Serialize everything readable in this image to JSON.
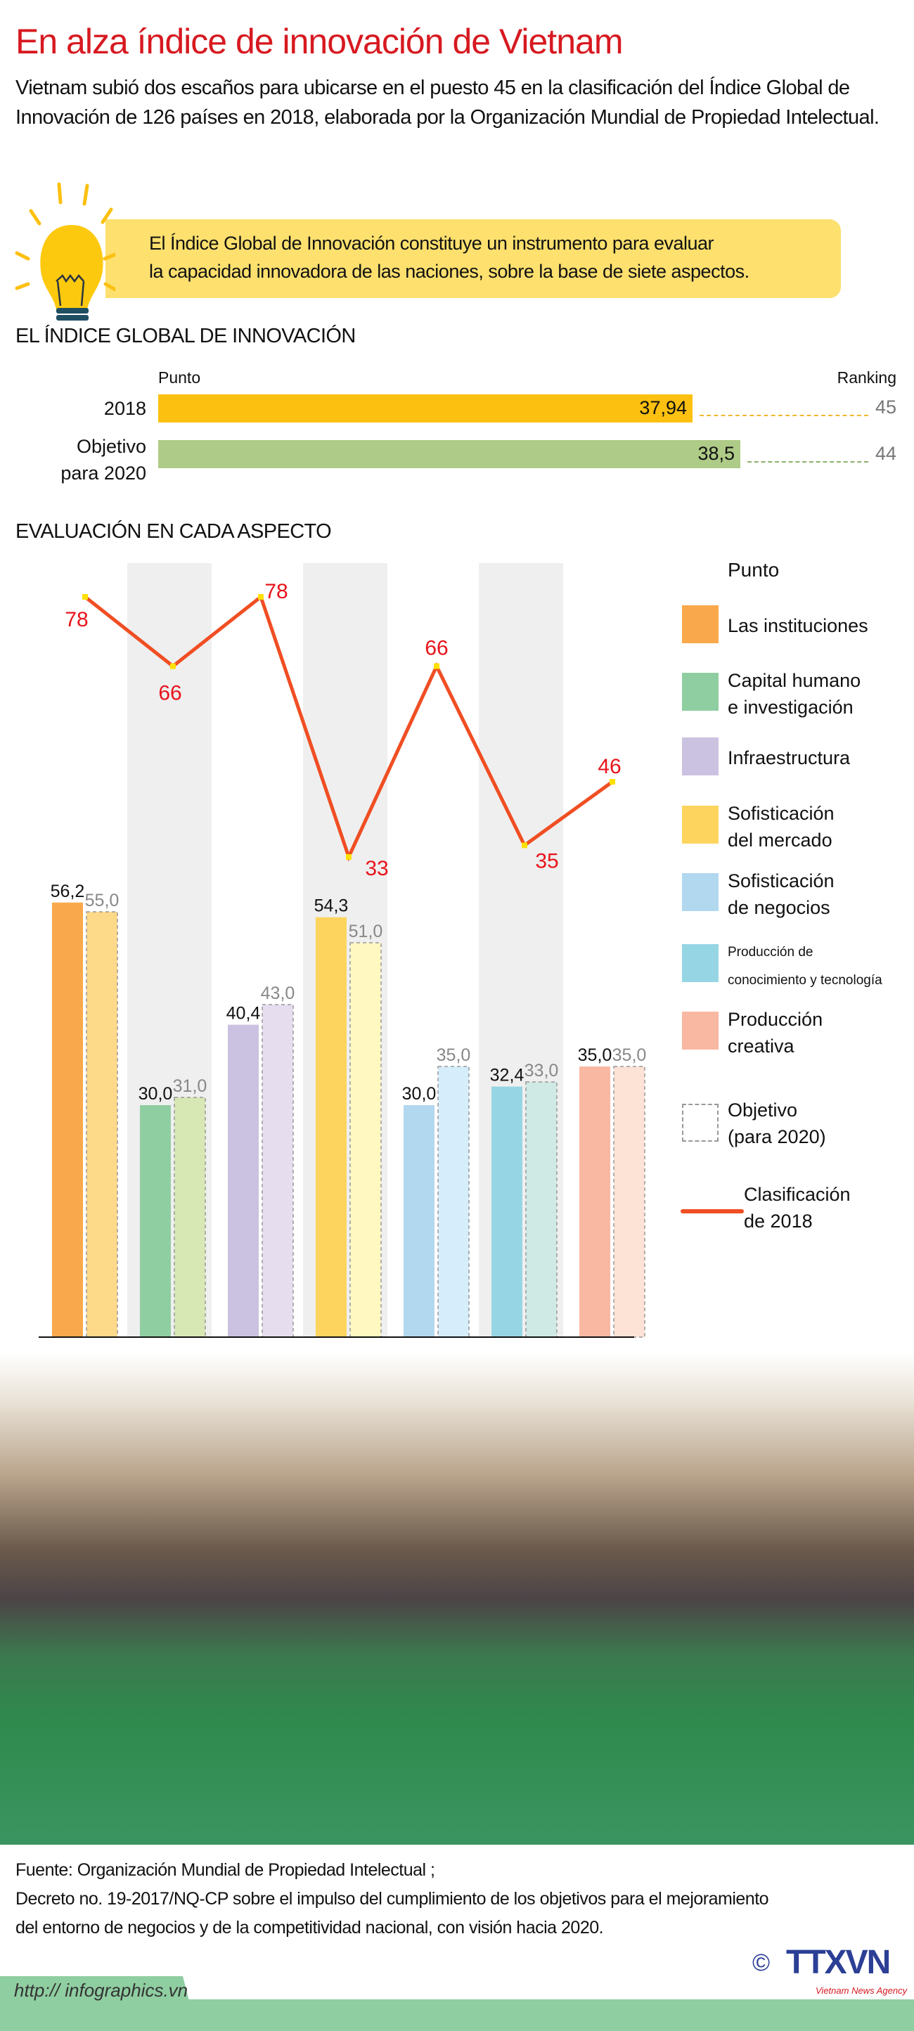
{
  "title": "En alza índice de innovación de Vietnam",
  "intro": "Vietnam subió dos escaños para ubicarse en el puesto 45 en la clasificación del Índice Global de Innovación de 126 países en 2018, elaborada por la Organización Mundial de Propiedad Intelectual.",
  "note": {
    "line1": "El Índice Global de Innovación constituye un instrumento para evaluar",
    "line2": "la capacidad innovadora de las naciones,  sobre la base de siete aspectos.",
    "icon": "lightbulb-icon"
  },
  "colors": {
    "title": "#d71920",
    "line": "#f04e23",
    "rank_label": "#e8141b"
  },
  "chart_data": [
    {
      "type": "bar",
      "title": "EL ÍNDICE GLOBAL DE INNOVACIÓN",
      "orientation": "horizontal",
      "value_header": "Punto",
      "rank_header": "Ranking",
      "rows": [
        {
          "label": "2018",
          "value": 37.94,
          "value_label": "37,94",
          "ranking": 45,
          "color": "#fcc010"
        },
        {
          "label": "Objetivo",
          "label2": "para 2020",
          "value": 38.5,
          "value_label": "38,5",
          "ranking": 44,
          "color": "#aecb87"
        }
      ]
    },
    {
      "type": "bar",
      "title": "EVALUACIÓN EN CADA ASPECTO",
      "legend_title": "Punto",
      "legend_placement": "right",
      "categories": [
        "Las instituciones",
        "Capital humano e investigación",
        "Infraestructura",
        "Sofisticación del mercado",
        "Sofisticación de negocios",
        "Producción de conocimiento y tecnología",
        "Producción creativa"
      ],
      "legend_lines": [
        [
          "Las instituciones"
        ],
        [
          "Capital humano",
          "e investigación"
        ],
        [
          "Infraestructura"
        ],
        [
          "Sofisticación",
          "del mercado"
        ],
        [
          "Sofisticación",
          "de negocios"
        ],
        [
          "Producción de",
          "conocimiento y tecnología"
        ],
        [
          "Producción",
          "creativa"
        ]
      ],
      "series": [
        {
          "values": [
            56.2,
            30.0,
            40.4,
            54.3,
            30.0,
            32.4,
            35.0
          ],
          "labels": [
            "56,2",
            "30,0",
            "40,4",
            "54,3",
            "30,0",
            "32,4",
            "35,0"
          ],
          "colors": [
            "#f9a94b",
            "#8fcea1",
            "#cbc1e0",
            "#fdd55e",
            "#b2d8f0",
            "#96d6e4",
            "#f9b8a2"
          ]
        },
        {
          "name": "Objetivo (para 2020)",
          "legend_lines": [
            "Objetivo",
            "(para 2020)"
          ],
          "values": [
            55.0,
            31.0,
            43.0,
            51.0,
            35.0,
            33.0,
            35.0
          ],
          "labels": [
            "55,0",
            "31,0",
            "43,0",
            "51,0",
            "35,0",
            "33,0",
            "35,0"
          ],
          "colors": [
            "#fdd98a",
            "#d8e8b4",
            "#e6deef",
            "#fff8c0",
            "#d6edfb",
            "#cfe9e4",
            "#fde3d6"
          ]
        }
      ],
      "line": {
        "name": "Clasificación de 2018",
        "legend_lines": [
          "Clasificación",
          "de 2018"
        ],
        "values": [
          78,
          66,
          78,
          33,
          66,
          35,
          46
        ]
      }
    }
  ],
  "footer": {
    "line1": "Fuente: Organización Mundial de Propiedad Intelectual ;",
    "line2": "Decreto no. 19-2017/NQ-CP sobre el impulso del cumplimiento de los objetivos para el mejoramiento",
    "line3": "del entorno de negocios y de la competitividad nacional, con visión hacia 2020.",
    "url": "http:// infographics.vn",
    "logo": "TTXVN",
    "logo_sub": "Vietnam News Agency",
    "copyright": "©"
  }
}
